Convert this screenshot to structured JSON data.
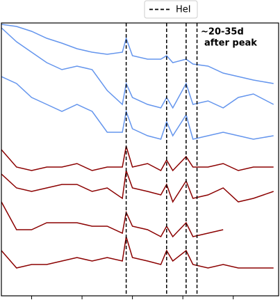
{
  "chart_data": {
    "type": "line",
    "annotation": [
      "~20-35d",
      "after peak"
    ],
    "x": [
      3400,
      3700,
      4000,
      4300,
      4600,
      4900,
      5200,
      5500,
      5800,
      5876,
      6000,
      6300,
      6563,
      6678,
      6800,
      7065,
      7200,
      7500,
      7800,
      8100,
      8400,
      8800
    ],
    "xlim": [
      3400,
      8900
    ],
    "xticks": [
      4000,
      5000,
      6000,
      7000,
      8000
    ],
    "ylim": [
      0,
      392
    ],
    "vlines": {
      "name": "HeI",
      "color": "#000000",
      "values": [
        5876,
        6678,
        7065,
        7281
      ]
    },
    "series": [
      {
        "color": "#6495ED",
        "values": [
          390,
          387,
          380,
          370,
          363,
          355,
          350,
          347,
          350,
          370,
          345,
          340,
          340,
          345,
          335,
          340,
          333,
          330,
          320,
          315,
          310,
          305
        ]
      },
      {
        "color": "#6495ED",
        "values": [
          385,
          365,
          350,
          335,
          325,
          330,
          325,
          295,
          275,
          305,
          285,
          275,
          270,
          285,
          270,
          305,
          275,
          280,
          270,
          285,
          290,
          275
        ]
      },
      {
        "color": "#6495ED",
        "values": [
          315,
          305,
          285,
          275,
          265,
          275,
          265,
          235,
          235,
          265,
          240,
          230,
          225,
          250,
          230,
          260,
          225,
          230,
          235,
          230,
          225,
          230
        ]
      },
      {
        "color": "#8B0000",
        "values": [
          210,
          185,
          180,
          185,
          185,
          190,
          180,
          185,
          185,
          215,
          185,
          190,
          180,
          195,
          180,
          200,
          185,
          185,
          190,
          180,
          185,
          185
        ]
      },
      {
        "color": "#8B0000",
        "values": [
          175,
          155,
          150,
          155,
          160,
          160,
          150,
          155,
          140,
          180,
          155,
          150,
          145,
          160,
          135,
          165,
          140,
          145,
          155,
          135,
          140,
          150
        ]
      },
      {
        "color": "#8B0000",
        "values": [
          135,
          95,
          95,
          105,
          105,
          105,
          100,
          100,
          90,
          120,
          100,
          95,
          85,
          100,
          85,
          105,
          85,
          90,
          95,
          null,
          null,
          null
        ]
      },
      {
        "color": "#8B0000",
        "values": [
          65,
          40,
          45,
          45,
          50,
          55,
          50,
          55,
          50,
          85,
          55,
          50,
          45,
          65,
          50,
          65,
          45,
          40,
          45,
          40,
          40,
          40
        ]
      }
    ]
  }
}
